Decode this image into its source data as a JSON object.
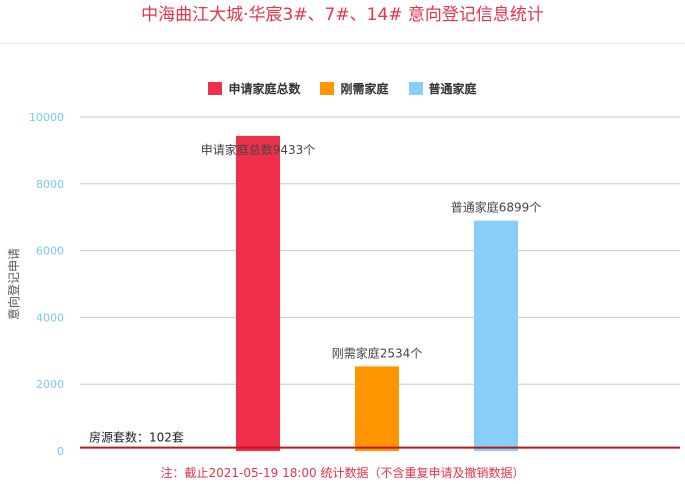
{
  "title": "中海曲江大城·华宸3#、7#、14# 意向登记信息统计",
  "note": "注：截止2021-05-19 18:00 统计数据（不含重复申请及撤销数据）",
  "colors": {
    "title": "#e8334a",
    "threshold_line": "#c0141c",
    "axis_tick": "#7cc8ea"
  },
  "chart_data": {
    "type": "bar",
    "title": "中海曲江大城·华宸3#、7#、14# 意向登记信息统计",
    "ylabel": "意向登记申请",
    "ylim": [
      0,
      10000
    ],
    "yticks": [
      "0",
      "2000",
      "4000",
      "6000",
      "8000",
      "10000"
    ],
    "grid": true,
    "legend_position": "top-center",
    "series": [
      {
        "name": "申请家庭总数",
        "value": 9433,
        "color": "#f0304a",
        "label": "申请家庭总数9433个"
      },
      {
        "name": "刚需家庭",
        "value": 2534,
        "color": "#ff9500",
        "label": "刚需家庭2534个"
      },
      {
        "name": "普通家庭",
        "value": 6899,
        "color": "#87cefa",
        "label": "普通家庭6899个"
      }
    ],
    "threshold": {
      "value": 102,
      "label": "房源套数：102套"
    }
  }
}
